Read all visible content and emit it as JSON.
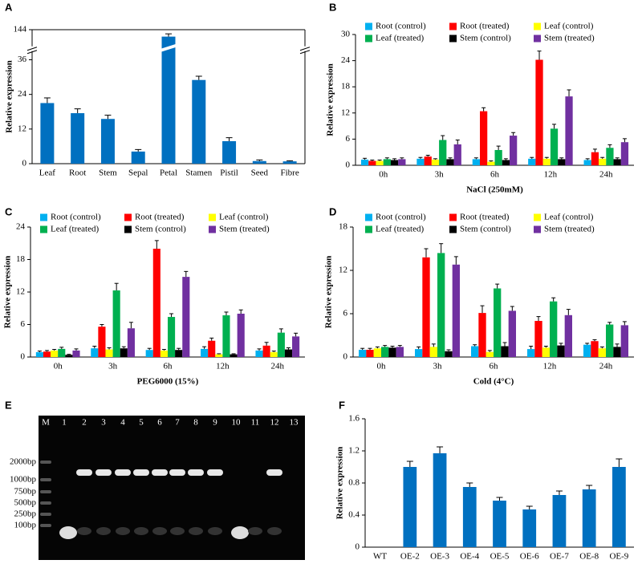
{
  "chart_data": [
    {
      "type": "bar",
      "label": "A",
      "ylabel": "Relative expression",
      "categories": [
        "Leaf",
        "Root",
        "Stem",
        "Sepal",
        "Petal",
        "Stamen",
        "Pistil",
        "Seed",
        "Fibre"
      ],
      "values": [
        21,
        17.5,
        15.5,
        4.2,
        134,
        29,
        7.8,
        0.9,
        0.8
      ],
      "errors": [
        1.8,
        1.5,
        1.3,
        0.7,
        4,
        1.3,
        1.2,
        0.4,
        0.2
      ],
      "color": "#0070c0",
      "ylim": [
        0,
        144
      ],
      "yticks": [
        0,
        12,
        24,
        36,
        144
      ],
      "axis_break": [
        39,
        120
      ]
    },
    {
      "type": "bar",
      "label": "B",
      "ylabel": "Relative expression",
      "xlabel": "NaCl (250mM)",
      "categories": [
        "0h",
        "3h",
        "6h",
        "12h",
        "24h"
      ],
      "series": [
        {
          "name": "Root (control)",
          "color": "#00b0f0",
          "values": [
            1.3,
            1.5,
            1.4,
            1.5,
            1.2
          ],
          "errors": [
            0.3,
            0.3,
            0.3,
            0.3,
            0.3
          ]
        },
        {
          "name": "Root (treated)",
          "color": "#ff0000",
          "values": [
            1.0,
            2.0,
            12.4,
            24.2,
            3.0
          ],
          "errors": [
            0.2,
            0.3,
            0.8,
            2.0,
            0.7
          ]
        },
        {
          "name": "Leaf (control)",
          "color": "#ffff00",
          "values": [
            1.0,
            1.3,
            0.8,
            1.5,
            1.5
          ],
          "errors": [
            0.2,
            0.2,
            0.2,
            0.3,
            0.3
          ]
        },
        {
          "name": "Leaf (treated)",
          "color": "#00b050",
          "values": [
            1.4,
            5.8,
            3.5,
            8.4,
            4.0
          ],
          "errors": [
            0.3,
            1.0,
            0.9,
            1.0,
            0.7
          ]
        },
        {
          "name": "Stem (control)",
          "color": "#000000",
          "values": [
            1.2,
            1.4,
            1.2,
            1.4,
            1.4
          ],
          "errors": [
            0.3,
            0.3,
            0.3,
            0.3,
            0.3
          ]
        },
        {
          "name": "Stem (treated)",
          "color": "#7030a0",
          "values": [
            1.4,
            4.8,
            6.8,
            15.8,
            5.3
          ],
          "errors": [
            0.3,
            1.0,
            0.7,
            1.5,
            0.8
          ]
        }
      ],
      "ylim": [
        0,
        30
      ],
      "yticks": [
        0,
        6,
        12,
        18,
        24,
        30
      ]
    },
    {
      "type": "bar",
      "label": "C",
      "ylabel": "Relative expression",
      "xlabel": "PEG6000 (15%)",
      "categories": [
        "0h",
        "3h",
        "6h",
        "12h",
        "24h"
      ],
      "series": [
        {
          "name": "Root (control)",
          "color": "#00b0f0",
          "values": [
            0.9,
            1.6,
            1.3,
            1.5,
            1.2
          ],
          "errors": [
            0.2,
            0.4,
            0.3,
            0.4,
            0.3
          ]
        },
        {
          "name": "Root (treated)",
          "color": "#ff0000",
          "values": [
            1.0,
            5.6,
            20.0,
            3.0,
            2.1
          ],
          "errors": [
            0.2,
            0.4,
            1.5,
            0.5,
            0.6
          ]
        },
        {
          "name": "Leaf (control)",
          "color": "#ffff00",
          "values": [
            1.2,
            1.4,
            1.2,
            0.5,
            0.9
          ],
          "errors": [
            0.2,
            0.3,
            0.2,
            0.1,
            0.2
          ]
        },
        {
          "name": "Leaf (treated)",
          "color": "#00b050",
          "values": [
            1.5,
            12.3,
            7.4,
            7.7,
            4.5
          ],
          "errors": [
            0.3,
            1.3,
            0.6,
            0.6,
            0.7
          ]
        },
        {
          "name": "Stem (control)",
          "color": "#000000",
          "values": [
            0.4,
            1.6,
            1.3,
            0.5,
            1.4
          ],
          "errors": [
            0.1,
            0.3,
            0.3,
            0.1,
            0.3
          ]
        },
        {
          "name": "Stem (treated)",
          "color": "#7030a0",
          "values": [
            1.2,
            5.3,
            14.8,
            8.0,
            3.8
          ],
          "errors": [
            0.3,
            1.1,
            1.0,
            0.7,
            0.6
          ]
        }
      ],
      "ylim": [
        0,
        24
      ],
      "yticks": [
        0,
        6,
        12,
        18,
        24
      ]
    },
    {
      "type": "bar",
      "label": "D",
      "ylabel": "Relative expression",
      "xlabel": "Cold (4°C)",
      "categories": [
        "0h",
        "3h",
        "6h",
        "12h",
        "24h"
      ],
      "series": [
        {
          "name": "Root (control)",
          "color": "#00b0f0",
          "values": [
            1.0,
            1.1,
            1.5,
            1.1,
            1.7
          ],
          "errors": [
            0.2,
            0.3,
            0.2,
            0.4,
            0.2
          ]
        },
        {
          "name": "Root (treated)",
          "color": "#ff0000",
          "values": [
            1.0,
            13.8,
            6.1,
            5.0,
            2.2
          ],
          "errors": [
            0.2,
            1.2,
            1.0,
            0.6,
            0.2
          ]
        },
        {
          "name": "Leaf (control)",
          "color": "#ffff00",
          "values": [
            1.2,
            1.4,
            0.7,
            1.3,
            1.2
          ],
          "errors": [
            0.2,
            0.4,
            0.2,
            0.2,
            0.2
          ]
        },
        {
          "name": "Leaf (treated)",
          "color": "#00b050",
          "values": [
            1.4,
            14.4,
            9.5,
            7.7,
            4.5
          ],
          "errors": [
            0.2,
            1.3,
            0.6,
            0.5,
            0.3
          ]
        },
        {
          "name": "Stem (control)",
          "color": "#000000",
          "values": [
            1.3,
            0.8,
            1.5,
            1.6,
            1.4
          ],
          "errors": [
            0.2,
            0.2,
            0.5,
            0.3,
            0.4
          ]
        },
        {
          "name": "Stem (treated)",
          "color": "#7030a0",
          "values": [
            1.4,
            12.8,
            6.4,
            5.8,
            4.4
          ],
          "errors": [
            0.2,
            1.1,
            0.6,
            0.8,
            0.5
          ]
        }
      ],
      "ylim": [
        0,
        18
      ],
      "yticks": [
        0,
        6,
        12,
        18
      ]
    },
    {
      "type": "bar",
      "label": "F",
      "ylabel": "Relative expression",
      "categories": [
        "WT",
        "OE-2",
        "OE-3",
        "OE-4",
        "OE-5",
        "OE-6",
        "OE-7",
        "OE-8",
        "OE-9"
      ],
      "values": [
        0,
        1.0,
        1.17,
        0.75,
        0.58,
        0.47,
        0.65,
        0.72,
        1.0
      ],
      "errors": [
        0,
        0.07,
        0.08,
        0.05,
        0.04,
        0.04,
        0.05,
        0.05,
        0.1
      ],
      "color": "#0070c0",
      "ylim": [
        0,
        1.6
      ],
      "yticks": [
        0,
        0.4,
        0.8,
        1.2,
        1.6
      ]
    }
  ],
  "gel": {
    "label": "E",
    "lanes": [
      "M",
      "1",
      "2",
      "3",
      "4",
      "5",
      "6",
      "7",
      "8",
      "9",
      "10",
      "11",
      "12",
      "13"
    ],
    "ladder": [
      "2000bp",
      "1000bp",
      "750bp",
      "500bp",
      "250bp",
      "100bp"
    ]
  }
}
